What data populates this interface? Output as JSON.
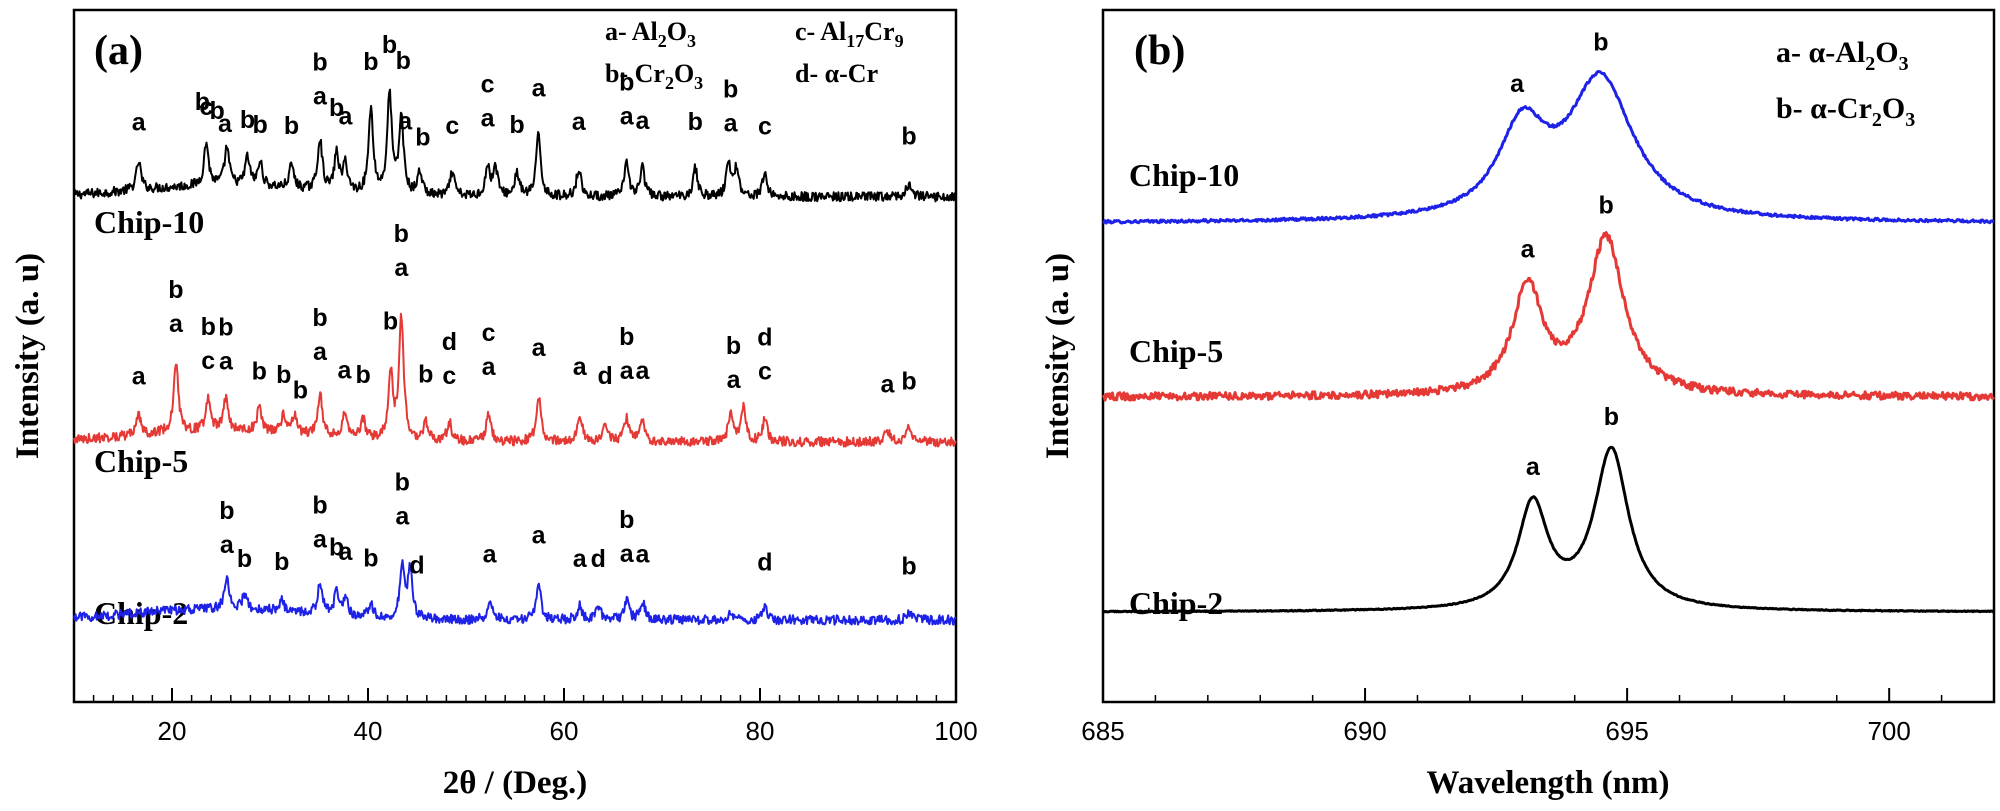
{
  "chart_data": [
    {
      "panel": "(a)",
      "type": "line",
      "xlabel": "2θ / (Deg.)",
      "ylabel": "Intensity (a. u)",
      "xlim": [
        10,
        100
      ],
      "x_ticks": [
        "20",
        "40",
        "60",
        "80",
        "100"
      ],
      "legend": {
        "placement": "top-right",
        "entries": [
          {
            "key": "a",
            "label": "Al2O3"
          },
          {
            "key": "b",
            "label": "Cr2O3"
          },
          {
            "key": "c",
            "label": "Al17Cr9"
          },
          {
            "key": "d",
            "label": "α-Cr"
          }
        ]
      },
      "series": [
        {
          "name": "Chip-2",
          "color": "#000000",
          "offset": 2,
          "noise": 0.05,
          "peaks": [
            [
              16.6,
              0.3
            ],
            [
              23.5,
              0.45
            ],
            [
              25.6,
              0.4
            ],
            [
              27.7,
              0.3
            ],
            [
              29.0,
              0.25
            ],
            [
              32.2,
              0.25
            ],
            [
              35.1,
              0.55
            ],
            [
              36.8,
              0.4
            ],
            [
              37.7,
              0.3
            ],
            [
              40.3,
              0.9
            ],
            [
              42.2,
              1.05
            ],
            [
              43.4,
              0.8
            ],
            [
              45.3,
              0.25
            ],
            [
              48.6,
              0.25
            ],
            [
              52.2,
              0.3
            ],
            [
              53.0,
              0.3
            ],
            [
              55.2,
              0.25
            ],
            [
              57.4,
              0.65
            ],
            [
              61.5,
              0.3
            ],
            [
              66.4,
              0.35
            ],
            [
              68.0,
              0.3
            ],
            [
              73.4,
              0.3
            ],
            [
              76.8,
              0.35
            ],
            [
              77.6,
              0.3
            ],
            [
              80.5,
              0.25
            ],
            [
              95.2,
              0.15
            ]
          ],
          "peak_labels": [
            {
              "x": 16.6,
              "text": "a"
            },
            {
              "x": 23.1,
              "text": "b"
            },
            {
              "x": 24.6,
              "text": "b"
            },
            {
              "x": 23.5,
              "text": "c",
              "row": 1
            },
            {
              "x": 25.4,
              "text": "a",
              "row": 1
            },
            {
              "x": 27.7,
              "text": "b"
            },
            {
              "x": 29.0,
              "text": "b"
            },
            {
              "x": 32.2,
              "text": "b"
            },
            {
              "x": 35.1,
              "text": "b"
            },
            {
              "x": 35.1,
              "text": "a",
              "row": 1
            },
            {
              "x": 36.8,
              "text": "b"
            },
            {
              "x": 37.7,
              "text": "a"
            },
            {
              "x": 40.3,
              "text": "b"
            },
            {
              "x": 42.2,
              "text": "b"
            },
            {
              "x": 43.6,
              "text": "b"
            },
            {
              "x": 43.8,
              "text": "a",
              "row": 1
            },
            {
              "x": 45.6,
              "text": "b"
            },
            {
              "x": 48.6,
              "text": "c"
            },
            {
              "x": 52.2,
              "text": "c"
            },
            {
              "x": 52.2,
              "text": "a",
              "row": 1
            },
            {
              "x": 55.2,
              "text": "b"
            },
            {
              "x": 57.4,
              "text": "a"
            },
            {
              "x": 61.5,
              "text": "a"
            },
            {
              "x": 66.4,
              "text": "b"
            },
            {
              "x": 66.4,
              "text": "a",
              "row": 1
            },
            {
              "x": 68.0,
              "text": "a"
            },
            {
              "x": 73.4,
              "text": "b"
            },
            {
              "x": 77.0,
              "text": "b"
            },
            {
              "x": 77.0,
              "text": "a",
              "row": 1
            },
            {
              "x": 80.5,
              "text": "c"
            },
            {
              "x": 95.2,
              "text": "b"
            }
          ]
        },
        {
          "name": "Chip-5",
          "color": "#e53935",
          "offset": 1,
          "noise": 0.05,
          "peaks": [
            [
              16.6,
              0.2
            ],
            [
              20.4,
              0.75
            ],
            [
              23.7,
              0.35
            ],
            [
              25.5,
              0.35
            ],
            [
              28.9,
              0.25
            ],
            [
              31.4,
              0.2
            ],
            [
              32.5,
              0.2
            ],
            [
              35.1,
              0.45
            ],
            [
              37.6,
              0.25
            ],
            [
              39.5,
              0.2
            ],
            [
              42.3,
              0.7
            ],
            [
              43.4,
              1.3
            ],
            [
              45.9,
              0.2
            ],
            [
              48.3,
              0.2
            ],
            [
              52.3,
              0.3
            ],
            [
              57.4,
              0.5
            ],
            [
              61.6,
              0.3
            ],
            [
              64.2,
              0.2
            ],
            [
              66.4,
              0.25
            ],
            [
              68.0,
              0.25
            ],
            [
              77.0,
              0.3
            ],
            [
              78.3,
              0.35
            ],
            [
              80.5,
              0.25
            ],
            [
              93.0,
              0.12
            ],
            [
              95.2,
              0.15
            ]
          ],
          "peak_labels": [
            {
              "x": 16.6,
              "text": "a"
            },
            {
              "x": 20.4,
              "text": "b"
            },
            {
              "x": 20.4,
              "text": "a",
              "row": 1
            },
            {
              "x": 23.7,
              "text": "b"
            },
            {
              "x": 25.5,
              "text": "b"
            },
            {
              "x": 23.7,
              "text": "c",
              "row": 1
            },
            {
              "x": 25.5,
              "text": "a",
              "row": 1
            },
            {
              "x": 28.9,
              "text": "b"
            },
            {
              "x": 31.4,
              "text": "b"
            },
            {
              "x": 33.1,
              "text": "b"
            },
            {
              "x": 35.1,
              "text": "b"
            },
            {
              "x": 35.1,
              "text": "a",
              "row": 1
            },
            {
              "x": 37.6,
              "text": "a"
            },
            {
              "x": 39.5,
              "text": "b"
            },
            {
              "x": 42.3,
              "text": "b"
            },
            {
              "x": 43.4,
              "text": "b"
            },
            {
              "x": 43.4,
              "text": "a",
              "row": 1
            },
            {
              "x": 45.9,
              "text": "b"
            },
            {
              "x": 48.3,
              "text": "d"
            },
            {
              "x": 48.3,
              "text": "c",
              "row": 1
            },
            {
              "x": 52.3,
              "text": "c"
            },
            {
              "x": 52.3,
              "text": "a",
              "row": 1
            },
            {
              "x": 57.4,
              "text": "a"
            },
            {
              "x": 61.6,
              "text": "a"
            },
            {
              "x": 64.2,
              "text": "d"
            },
            {
              "x": 66.4,
              "text": "b"
            },
            {
              "x": 66.4,
              "text": "a",
              "row": 1
            },
            {
              "x": 68.0,
              "text": "a"
            },
            {
              "x": 77.3,
              "text": "b"
            },
            {
              "x": 77.3,
              "text": "a",
              "row": 1
            },
            {
              "x": 80.5,
              "text": "d"
            },
            {
              "x": 80.5,
              "text": "c",
              "row": 1
            },
            {
              "x": 93.0,
              "text": "a"
            },
            {
              "x": 95.2,
              "text": "b"
            }
          ]
        },
        {
          "name": "Chip-10",
          "color": "#1e22e6",
          "offset": 0,
          "noise": 0.05,
          "peaks": [
            [
              25.6,
              0.3
            ],
            [
              27.4,
              0.15
            ],
            [
              31.2,
              0.12
            ],
            [
              35.1,
              0.35
            ],
            [
              36.8,
              0.25
            ],
            [
              37.7,
              0.2
            ],
            [
              40.3,
              0.15
            ],
            [
              43.5,
              0.55
            ],
            [
              44.3,
              0.5
            ],
            [
              52.4,
              0.2
            ],
            [
              57.4,
              0.4
            ],
            [
              61.6,
              0.15
            ],
            [
              63.5,
              0.15
            ],
            [
              66.4,
              0.2
            ],
            [
              68.0,
              0.2
            ],
            [
              77.0,
              0.1
            ],
            [
              80.5,
              0.12
            ],
            [
              95.2,
              0.08
            ]
          ],
          "peak_labels": [
            {
              "x": 25.6,
              "text": "b"
            },
            {
              "x": 25.6,
              "text": "a",
              "row": 1
            },
            {
              "x": 27.4,
              "text": "b"
            },
            {
              "x": 31.2,
              "text": "b"
            },
            {
              "x": 35.1,
              "text": "b"
            },
            {
              "x": 35.1,
              "text": "a",
              "row": 1
            },
            {
              "x": 36.8,
              "text": "b",
              "row": 1
            },
            {
              "x": 37.7,
              "text": "a"
            },
            {
              "x": 40.3,
              "text": "b"
            },
            {
              "x": 43.5,
              "text": "b"
            },
            {
              "x": 43.5,
              "text": "a",
              "row": 1
            },
            {
              "x": 45.0,
              "text": "d",
              "row": 1
            },
            {
              "x": 52.4,
              "text": "a"
            },
            {
              "x": 57.4,
              "text": "a"
            },
            {
              "x": 61.6,
              "text": "a"
            },
            {
              "x": 63.5,
              "text": "d"
            },
            {
              "x": 66.4,
              "text": "b"
            },
            {
              "x": 66.4,
              "text": "a",
              "row": 1
            },
            {
              "x": 68.0,
              "text": "a"
            },
            {
              "x": 80.5,
              "text": "d"
            },
            {
              "x": 95.2,
              "text": "b"
            }
          ]
        }
      ]
    },
    {
      "panel": "(b)",
      "type": "line",
      "xlabel": "Wavelength (nm)",
      "ylabel": "Intensity (a. u)",
      "xlim": [
        685,
        702
      ],
      "x_ticks": [
        "685",
        "690",
        "695",
        "700"
      ],
      "legend": {
        "placement": "top-right",
        "entries": [
          {
            "key": "a",
            "label": "α-Al2O3"
          },
          {
            "key": "b",
            "label": "α-Cr2O3"
          }
        ]
      },
      "series": [
        {
          "name": "Chip-2",
          "color": "#1e22e6",
          "offset": 2,
          "noise": 0.01,
          "peaks": [
            [
              693.0,
              0.62,
              0.55
            ],
            [
              694.5,
              1.0,
              0.75
            ]
          ],
          "peak_labels": [
            {
              "x": 692.9,
              "text": "a"
            },
            {
              "x": 694.5,
              "text": "b"
            }
          ]
        },
        {
          "name": "Chip-5",
          "color": "#e53935",
          "offset": 1,
          "noise": 0.03,
          "peaks": [
            [
              693.1,
              0.85,
              0.35
            ],
            [
              694.6,
              1.25,
              0.42
            ]
          ],
          "peak_labels": [
            {
              "x": 693.1,
              "text": "a"
            },
            {
              "x": 694.6,
              "text": "b"
            }
          ]
        },
        {
          "name": "Chip-10",
          "color": "#000000",
          "offset": 0,
          "noise": 0.004,
          "peaks": [
            [
              693.2,
              0.95,
              0.35
            ],
            [
              694.7,
              1.45,
              0.4
            ]
          ],
          "peak_labels": [
            {
              "x": 693.2,
              "text": "a"
            },
            {
              "x": 694.7,
              "text": "b"
            }
          ]
        }
      ]
    }
  ]
}
